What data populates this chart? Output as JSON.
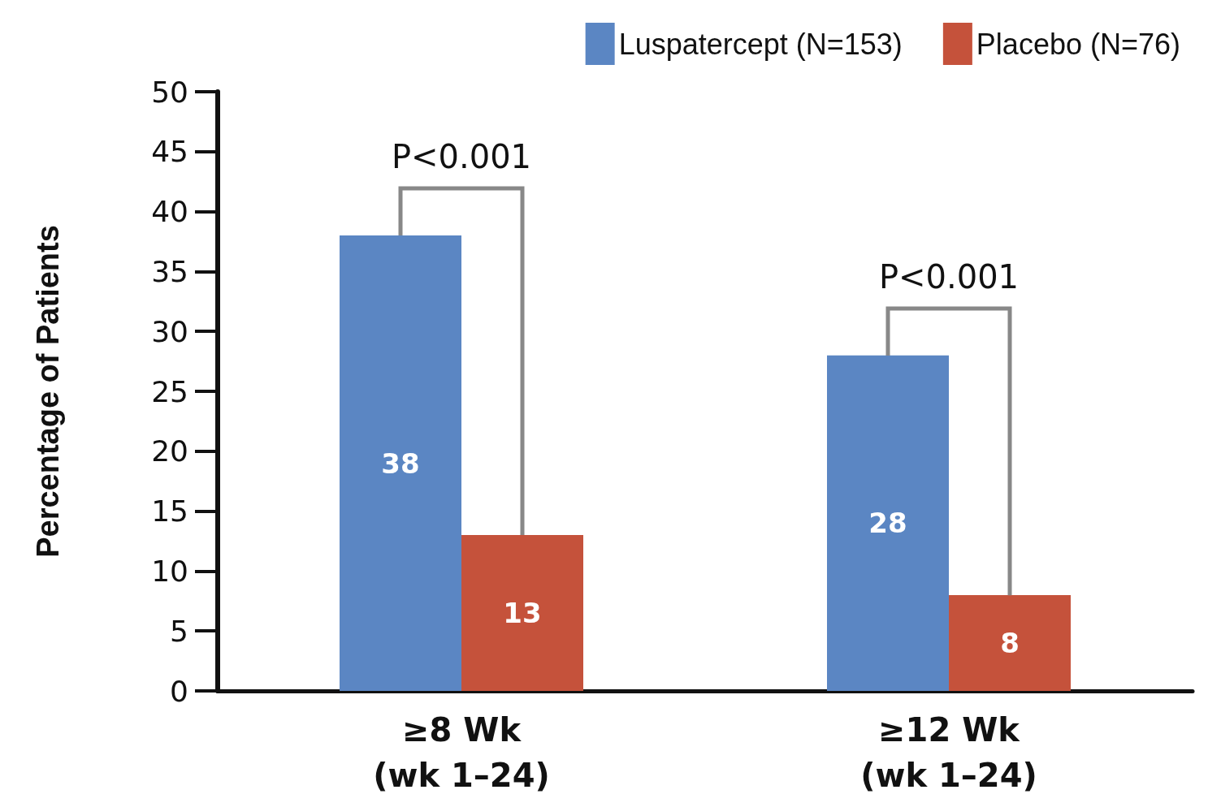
{
  "chart_data": {
    "type": "bar",
    "ylabel": "Percentage of Patients",
    "categories": [
      "≥8 Wk\n(wk 1–24)",
      "≥12 Wk\n(wk 1–24)"
    ],
    "series": [
      {
        "name": "Luspatercept (N=153)",
        "color": "#5b86c3",
        "values": [
          38,
          28
        ]
      },
      {
        "name": "Placebo (N=76)",
        "color": "#c5523b",
        "values": [
          13,
          8
        ]
      }
    ],
    "ylim": [
      0,
      50
    ],
    "yticks": [
      0,
      5,
      10,
      15,
      20,
      25,
      30,
      35,
      40,
      45,
      50
    ],
    "grid": false,
    "legend": "top right",
    "data_labels": true,
    "annotations": [
      "P<0.001",
      "P<0.001"
    ]
  }
}
